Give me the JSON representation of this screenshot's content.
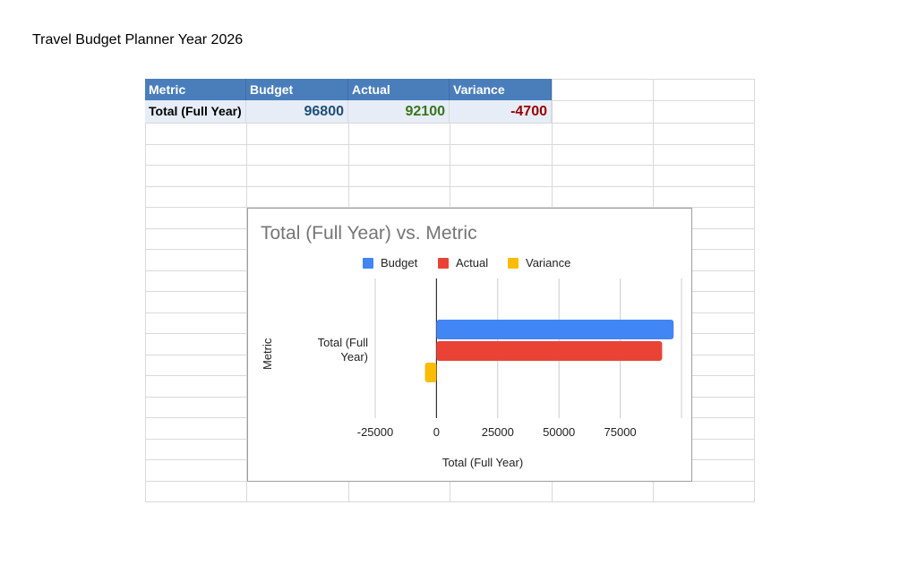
{
  "document": {
    "title": "Travel Budget Planner Year 2026"
  },
  "table": {
    "headers": [
      "Metric",
      "Budget",
      "Actual",
      "Variance"
    ],
    "row": {
      "label": "Total (Full Year)",
      "budget": "96800",
      "actual": "92100",
      "variance": "-4700"
    },
    "colors": {
      "header_bg": "#4a7ebb",
      "row_bg": "#e6edf7",
      "budget": "#1f4e79",
      "actual": "#38761d",
      "variance": "#990000"
    }
  },
  "chart_data": {
    "type": "bar",
    "orientation": "horizontal",
    "title": "Total (Full Year) vs. Metric",
    "xlabel": "Total (Full Year)",
    "ylabel": "Metric",
    "categories": [
      "Total (Full Year)"
    ],
    "series": [
      {
        "name": "Budget",
        "values": [
          96800
        ],
        "color": "#4285f4"
      },
      {
        "name": "Actual",
        "values": [
          92100
        ],
        "color": "#ea4335"
      },
      {
        "name": "Variance",
        "values": [
          -4700
        ],
        "color": "#fbbc04"
      }
    ],
    "xlim": [
      -25000,
      100000
    ],
    "xticks": [
      -25000,
      0,
      25000,
      50000,
      75000
    ],
    "grid": true,
    "legend_position": "top"
  }
}
